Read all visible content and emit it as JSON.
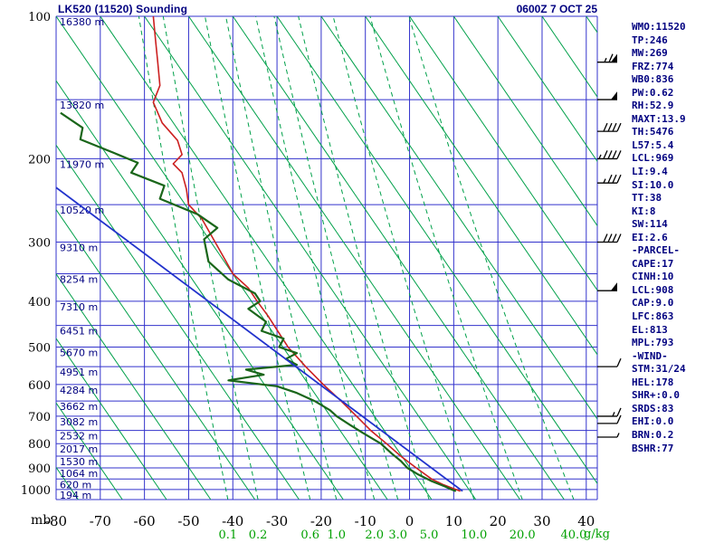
{
  "header": {
    "title": "LK520 (11520) Sounding",
    "datetime": "0600Z  7 OCT 25"
  },
  "colors": {
    "grid": "#3333cc",
    "isopleth_green": "#00a04a",
    "label_green": "#00a000",
    "navy": "#000080",
    "black": "#000000",
    "barb": "#000000"
  },
  "chart_data": {
    "type": "line",
    "title": "LK520 (11520) Sounding",
    "subtitle": "0600Z 7 OCT 25",
    "description": "Thermodynamic sounding diagram: temperature (red) and dewpoint (dark green) vs pressure (log scale), with dry adiabats (solid green), mixing-ratio lines (dashed green), parcel trace (blue) and wind barbs (right edge).",
    "mixing_unit_label": "g/kg",
    "x_axis": {
      "unit": "C",
      "min": -80,
      "max": 42.5,
      "ticks": [
        -80,
        -70,
        -60,
        -50,
        -40,
        -30,
        -20,
        -10,
        0,
        10,
        20,
        30,
        40
      ]
    },
    "y_axis": {
      "unit_label": "mb",
      "scale": "log",
      "top": 100,
      "bottom": 1050,
      "tick_labels": [
        100,
        200,
        300,
        400,
        500,
        600,
        700,
        800,
        900,
        1000
      ],
      "grid_lines": [
        100,
        150,
        200,
        250,
        300,
        350,
        400,
        450,
        500,
        550,
        600,
        650,
        700,
        750,
        800,
        850,
        900,
        950,
        1000,
        1050
      ]
    },
    "height_labels": [
      {
        "p": 100,
        "text": "16380 m"
      },
      {
        "p": 150,
        "text": "13820 m"
      },
      {
        "p": 200,
        "text": "11970 m"
      },
      {
        "p": 250,
        "text": "10520 m"
      },
      {
        "p": 300,
        "text": "9310 m"
      },
      {
        "p": 350,
        "text": "8254 m"
      },
      {
        "p": 400,
        "text": "7310 m"
      },
      {
        "p": 450,
        "text": "6451 m"
      },
      {
        "p": 500,
        "text": "5670 m"
      },
      {
        "p": 550,
        "text": "4951 m"
      },
      {
        "p": 600,
        "text": "4284 m"
      },
      {
        "p": 650,
        "text": "3662 m"
      },
      {
        "p": 700,
        "text": "3082 m"
      },
      {
        "p": 750,
        "text": "2532 m"
      },
      {
        "p": 800,
        "text": "2017 m"
      },
      {
        "p": 850,
        "text": "1530 m"
      },
      {
        "p": 900,
        "text": "1064 m"
      },
      {
        "p": 950,
        "text": "620 m"
      },
      {
        "p": 1000,
        "text": "194 m"
      }
    ],
    "mixing_ratio_lines_g_kg": [
      0.1,
      0.2,
      0.6,
      1.0,
      2.0,
      3.0,
      5.0,
      10.0,
      20.0,
      40.0
    ],
    "dry_adiabat_surface_temps_c": [
      -75,
      -65,
      -55,
      -45,
      -35,
      -25,
      -15,
      -5,
      5,
      15,
      25,
      35,
      45,
      55,
      65,
      75,
      85,
      95,
      105,
      115
    ],
    "dry_adiabat_temp_drop_to_top_c": 75,
    "series": [
      {
        "name": "temperature",
        "color": "#cc2020",
        "width": 1.6,
        "points": [
          [
            100,
            -58
          ],
          [
            112,
            -57.5
          ],
          [
            125,
            -57
          ],
          [
            140,
            -56.5
          ],
          [
            152,
            -58
          ],
          [
            168,
            -56
          ],
          [
            183,
            -52.5
          ],
          [
            196,
            -51.5
          ],
          [
            205,
            -53.5
          ],
          [
            214,
            -51.5
          ],
          [
            232,
            -50.5
          ],
          [
            250,
            -50
          ],
          [
            268,
            -47
          ],
          [
            300,
            -44
          ],
          [
            330,
            -41.5
          ],
          [
            350,
            -40
          ],
          [
            375,
            -36.5
          ],
          [
            400,
            -34.5
          ],
          [
            430,
            -32
          ],
          [
            460,
            -30
          ],
          [
            500,
            -27.5
          ],
          [
            550,
            -23.5
          ],
          [
            600,
            -19.5
          ],
          [
            650,
            -15.5
          ],
          [
            700,
            -12
          ],
          [
            750,
            -8.8
          ],
          [
            800,
            -5.2
          ],
          [
            850,
            -2
          ],
          [
            900,
            1.5
          ],
          [
            950,
            5
          ],
          [
            975,
            7.5
          ],
          [
            1000,
            10.5
          ],
          [
            1008,
            11.5
          ]
        ]
      },
      {
        "name": "dewpoint",
        "color": "#1a661a",
        "width": 2.2,
        "points": [
          [
            160,
            -79
          ],
          [
            172,
            -74
          ],
          [
            182,
            -74.5
          ],
          [
            196,
            -66
          ],
          [
            204,
            -61.5
          ],
          [
            214,
            -63
          ],
          [
            228,
            -55.5
          ],
          [
            243,
            -56.5
          ],
          [
            262,
            -48
          ],
          [
            280,
            -43.5
          ],
          [
            296,
            -46.5
          ],
          [
            330,
            -45.5
          ],
          [
            360,
            -41
          ],
          [
            385,
            -35
          ],
          [
            400,
            -33.8
          ],
          [
            415,
            -36.5
          ],
          [
            442,
            -32.5
          ],
          [
            462,
            -33.5
          ],
          [
            480,
            -28.5
          ],
          [
            500,
            -29.5
          ],
          [
            515,
            -25.5
          ],
          [
            530,
            -28
          ],
          [
            545,
            -25.5
          ],
          [
            558,
            -37
          ],
          [
            572,
            -33
          ],
          [
            588,
            -41
          ],
          [
            605,
            -30
          ],
          [
            625,
            -25.5
          ],
          [
            650,
            -21.5
          ],
          [
            680,
            -18
          ],
          [
            700,
            -16.5
          ],
          [
            730,
            -13.5
          ],
          [
            760,
            -10.5
          ],
          [
            800,
            -6.5
          ],
          [
            840,
            -4
          ],
          [
            870,
            -2
          ],
          [
            900,
            -0.5
          ],
          [
            930,
            2
          ],
          [
            960,
            5
          ],
          [
            985,
            8
          ],
          [
            1000,
            9.5
          ],
          [
            1008,
            10.5
          ]
        ]
      },
      {
        "name": "parcel",
        "color": "#2233cc",
        "width": 1.8,
        "points": [
          [
            1008,
            12
          ],
          [
            230,
            -80
          ]
        ]
      }
    ],
    "wind_barbs": [
      {
        "p": 125,
        "kt": 65
      },
      {
        "p": 150,
        "kt": 50
      },
      {
        "p": 175,
        "kt": 40
      },
      {
        "p": 200,
        "kt": 45
      },
      {
        "p": 225,
        "kt": 35
      },
      {
        "p": 300,
        "kt": 40
      },
      {
        "p": 380,
        "kt": 50
      },
      {
        "p": 550,
        "kt": 10
      },
      {
        "p": 700,
        "kt": 15
      },
      {
        "p": 725,
        "kt": 10
      },
      {
        "p": 775,
        "kt": 5
      }
    ]
  },
  "index_panel": {
    "lines": [
      "WMO:11520",
      "TP:246",
      "MW:269",
      "FRZ:774",
      "WB0:836",
      "PW:0.62",
      "RH:52.9",
      "MAXT:13.9",
      "TH:5476",
      "L57:5.4",
      "LCL:969",
      "LI:9.4",
      "SI:10.0",
      "TT:38",
      "KI:8",
      "SW:114",
      "EI:2.6",
      "-PARCEL-",
      "CAPE:17",
      "CINH:10",
      "LCL:908",
      "CAP:9.0",
      "LFC:863",
      "EL:813",
      "MPL:793",
      "-WIND-",
      "STM:31/24",
      "HEL:178",
      "SHR+:0.0",
      "SRDS:83",
      "EHI:0.0",
      "BRN:0.2",
      "BSHR:77"
    ]
  }
}
